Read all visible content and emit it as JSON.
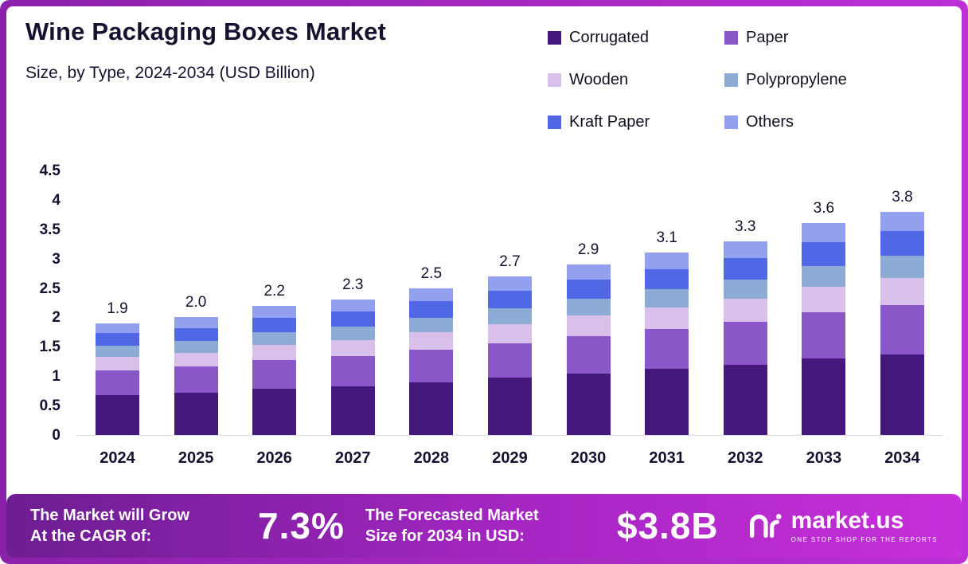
{
  "header": {
    "title": "Wine Packaging Boxes Market",
    "subtitle": "Size, by Type, 2024-2034 (USD Billion)"
  },
  "chart_data": {
    "type": "bar",
    "stacked": true,
    "title": "Wine Packaging Boxes Market Size, by Type, 2024-2034 (USD Billion)",
    "categories": [
      "2024",
      "2025",
      "2026",
      "2027",
      "2028",
      "2029",
      "2030",
      "2031",
      "2032",
      "2033",
      "2034"
    ],
    "totals": [
      1.9,
      2.0,
      2.2,
      2.3,
      2.5,
      2.7,
      2.9,
      3.1,
      3.3,
      3.6,
      3.8
    ],
    "total_labels": [
      "1.9",
      "2.0",
      "2.2",
      "2.3",
      "2.5",
      "2.7",
      "2.9",
      "3.1",
      "3.3",
      "3.6",
      "3.8"
    ],
    "series": [
      {
        "name": "Corrugated",
        "color": "#44187d",
        "values": [
          0.68,
          0.72,
          0.79,
          0.83,
          0.9,
          0.97,
          1.04,
          1.12,
          1.19,
          1.3,
          1.37
        ]
      },
      {
        "name": "Paper",
        "color": "#8a57c8",
        "values": [
          0.42,
          0.44,
          0.48,
          0.51,
          0.55,
          0.59,
          0.64,
          0.68,
          0.73,
          0.79,
          0.84
        ]
      },
      {
        "name": "Wooden",
        "color": "#d9c0eb",
        "values": [
          0.23,
          0.24,
          0.26,
          0.28,
          0.3,
          0.32,
          0.35,
          0.37,
          0.4,
          0.43,
          0.46
        ]
      },
      {
        "name": "Polypropylene",
        "color": "#8cacd6",
        "values": [
          0.19,
          0.2,
          0.22,
          0.23,
          0.25,
          0.27,
          0.29,
          0.31,
          0.33,
          0.36,
          0.38
        ]
      },
      {
        "name": "Kraft Paper",
        "color": "#5168e6",
        "values": [
          0.21,
          0.22,
          0.24,
          0.25,
          0.28,
          0.3,
          0.32,
          0.34,
          0.36,
          0.4,
          0.42
        ]
      },
      {
        "name": "Others",
        "color": "#93a0ee",
        "values": [
          0.17,
          0.18,
          0.21,
          0.2,
          0.22,
          0.25,
          0.26,
          0.28,
          0.29,
          0.32,
          0.33
        ]
      }
    ],
    "y_axis": {
      "min": 0,
      "max": 4.5,
      "tick_values": [
        4.5,
        4,
        3.5,
        3,
        2.5,
        2,
        1.5,
        1,
        0.5,
        0
      ],
      "tick_labels": [
        "4.5",
        "4",
        "3.5",
        "3",
        "2.5",
        "2",
        "1.5",
        "1",
        "0.5",
        "0"
      ]
    },
    "legend_position": "top-right",
    "grid": false
  },
  "footer": {
    "growth_label_lines": [
      "The Market will Grow",
      "At the CAGR of:"
    ],
    "cagr_value": "7.3%",
    "forecast_label_lines": [
      "The Forecasted Market",
      "Size for 2034 in USD:"
    ],
    "forecast_value": "$3.8B",
    "brand": {
      "name": "market.us",
      "tagline": "ONE STOP SHOP FOR THE REPORTS"
    }
  },
  "colors": {
    "frame": "#a928c9",
    "banner_gradient_start": "#6d1d92",
    "banner_gradient_end": "#c62fd9",
    "title_text": "#15112e"
  }
}
